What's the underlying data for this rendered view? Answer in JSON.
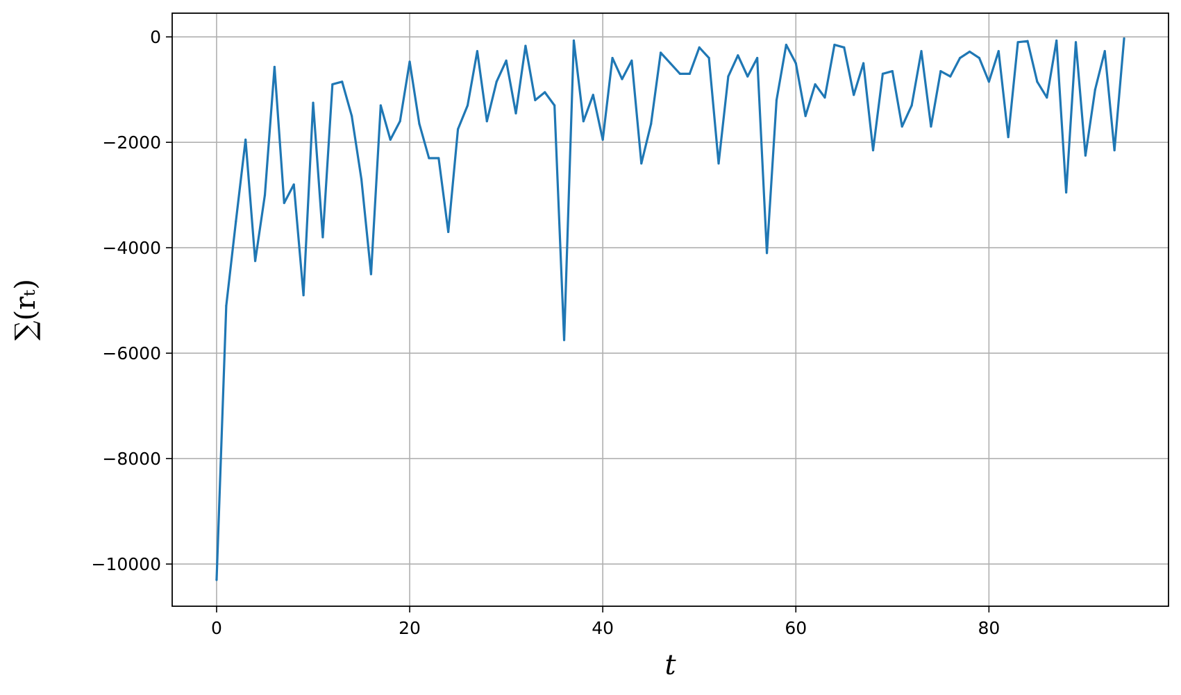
{
  "chart_data": {
    "type": "line",
    "xlabel": "t",
    "ylabel": "∑(rₜ)",
    "xlim": [
      -4.6,
      98.6
    ],
    "ylim": [
      -10800,
      450
    ],
    "xticks": [
      0,
      20,
      40,
      60,
      80
    ],
    "xtick_labels": [
      "0",
      "20",
      "40",
      "60",
      "80"
    ],
    "yticks": [
      0,
      -2000,
      -4000,
      -6000,
      -8000,
      -10000
    ],
    "ytick_labels": [
      "0",
      "−2000",
      "−4000",
      "−6000",
      "−8000",
      "−10000"
    ],
    "grid": true,
    "line_color": "#1f77b4",
    "series": [
      {
        "x": [
          0,
          1,
          2,
          3,
          4,
          5,
          6,
          7,
          8,
          9,
          10,
          11,
          12,
          13,
          14,
          15,
          16,
          17,
          18,
          19,
          20,
          21,
          22,
          23,
          24,
          25,
          26,
          27,
          28,
          29,
          30,
          31,
          32,
          33,
          34,
          35,
          36,
          37,
          38,
          39,
          40,
          41,
          42,
          43,
          44,
          45,
          46,
          47,
          48,
          49,
          50,
          51,
          52,
          53,
          54,
          55,
          56,
          57,
          58,
          59,
          60,
          61,
          62,
          63,
          64,
          65,
          66,
          67,
          68,
          69,
          70,
          71,
          72,
          73,
          74,
          75,
          76,
          77,
          78,
          79,
          80,
          81,
          82,
          83,
          84,
          85,
          86,
          87,
          88,
          89,
          90,
          91,
          92,
          93,
          94
        ],
        "y": [
          -10300,
          -5100,
          -3500,
          -1950,
          -4250,
          -3000,
          -570,
          -3150,
          -2800,
          -4900,
          -1250,
          -3800,
          -900,
          -850,
          -1500,
          -2700,
          -4500,
          -1300,
          -1950,
          -1600,
          -470,
          -1650,
          -2300,
          -2300,
          -3700,
          -1750,
          -1300,
          -270,
          -1600,
          -850,
          -450,
          -1450,
          -170,
          -1200,
          -1050,
          -1300,
          -5750,
          -70,
          -1600,
          -1100,
          -1950,
          -400,
          -800,
          -450,
          -2400,
          -1650,
          -300,
          -500,
          -700,
          -700,
          -200,
          -400,
          -2400,
          -750,
          -350,
          -750,
          -400,
          -4100,
          -1200,
          -150,
          -500,
          -1500,
          -900,
          -1150,
          -150,
          -200,
          -1100,
          -500,
          -2150,
          -700,
          -650,
          -1700,
          -1300,
          -270,
          -1700,
          -650,
          -750,
          -400,
          -280,
          -400,
          -850,
          -270,
          -1900,
          -100,
          -80,
          -850,
          -1150,
          -70,
          -2950,
          -100,
          -2250,
          -1000,
          -270,
          -2150,
          -30
        ]
      }
    ]
  }
}
